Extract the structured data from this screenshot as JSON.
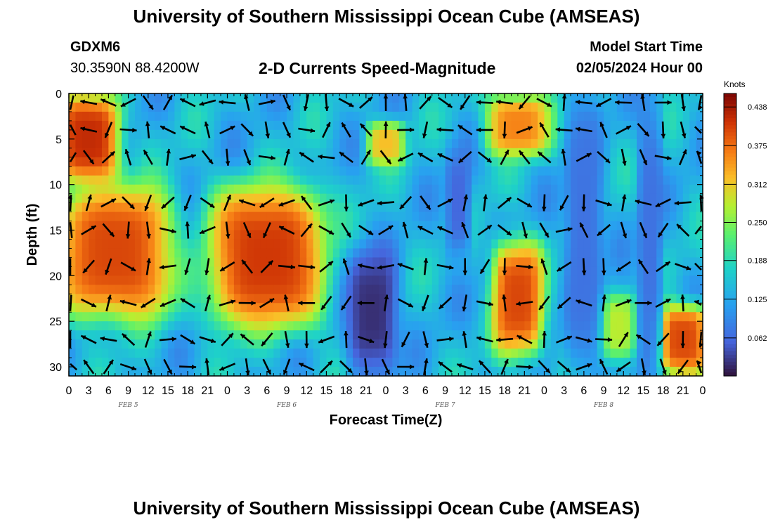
{
  "header": {
    "title": "University of Southern Mississippi Ocean Cube (AMSEAS)",
    "station_id": "GDXM6",
    "coordinates": "30.3590N  88.4200W",
    "subtitle": "2-D Currents Speed-Magnitude",
    "model_start_label": "Model Start Time",
    "model_start_value": "02/05/2024 Hour 00"
  },
  "footer": {
    "title": "University of Southern Mississippi Ocean Cube (AMSEAS)"
  },
  "chart_data": {
    "type": "heatmap",
    "title": "2-D Currents Speed-Magnitude",
    "xlabel": "Forecast Time(Z)",
    "ylabel": "Depth (ft)",
    "colorbar_label": "Knots",
    "x_ticks": [
      "0",
      "3",
      "6",
      "9",
      "12",
      "15",
      "18",
      "21",
      "0",
      "3",
      "6",
      "9",
      "12",
      "15",
      "18",
      "21",
      "0",
      "3",
      "6",
      "9",
      "12",
      "15",
      "18",
      "21",
      "0",
      "3",
      "6",
      "9",
      "12",
      "15",
      "18",
      "21",
      "0"
    ],
    "date_labels": [
      {
        "label": "FEB 5",
        "hour": 9
      },
      {
        "label": "FEB 6",
        "hour": 33
      },
      {
        "label": "FEB 7",
        "hour": 57
      },
      {
        "label": "FEB 8",
        "hour": 81
      }
    ],
    "xlim": [
      0,
      96
    ],
    "ylim": [
      0,
      31
    ],
    "y_ticks": [
      0,
      5,
      10,
      15,
      20,
      25,
      30
    ],
    "colorbar_ticks": [
      "0.438",
      "0.375",
      "0.312",
      "0.250",
      "0.188",
      "0.125",
      "0.062"
    ],
    "colorbar_range": [
      0,
      0.46
    ],
    "speed_hotspots_knots": [
      {
        "t_center": 3,
        "t_halfwidth": 5,
        "depth_top": 0,
        "depth_bottom": 10,
        "speed": 0.42
      },
      {
        "t_center": 7,
        "t_halfwidth": 9,
        "depth_top": 10,
        "depth_bottom": 25,
        "speed": 0.4
      },
      {
        "t_center": 30,
        "t_halfwidth": 9,
        "depth_top": 10,
        "depth_bottom": 26,
        "speed": 0.41
      },
      {
        "t_center": 48,
        "t_halfwidth": 3,
        "depth_top": 3,
        "depth_bottom": 8,
        "speed": 0.32
      },
      {
        "t_center": 68,
        "t_halfwidth": 5,
        "depth_top": 0,
        "depth_bottom": 7,
        "speed": 0.36
      },
      {
        "t_center": 68,
        "t_halfwidth": 4,
        "depth_top": 16,
        "depth_bottom": 29,
        "speed": 0.4
      },
      {
        "t_center": 93,
        "t_halfwidth": 4,
        "depth_top": 23,
        "depth_bottom": 31,
        "speed": 0.4
      },
      {
        "t_center": 83,
        "t_halfwidth": 3,
        "depth_top": 22,
        "depth_bottom": 29,
        "speed": 0.28
      }
    ],
    "speed_lows_knots": [
      {
        "t_center": 46,
        "t_halfwidth": 4,
        "depth_top": 17,
        "depth_bottom": 31,
        "speed": 0.02
      },
      {
        "t_center": 59,
        "t_halfwidth": 2,
        "depth_top": 6,
        "depth_bottom": 18,
        "speed": 0.06
      },
      {
        "t_center": 78,
        "t_halfwidth": 3,
        "depth_top": 0,
        "depth_bottom": 31,
        "speed": 0.07
      },
      {
        "t_center": 88,
        "t_halfwidth": 2,
        "depth_top": 0,
        "depth_bottom": 31,
        "speed": 0.07
      }
    ],
    "vector_grid": {
      "t_step": 3,
      "t_start": 0,
      "t_end": 96,
      "depths": [
        1,
        4,
        7,
        12,
        15,
        19,
        23,
        27,
        30
      ]
    },
    "grid": false
  }
}
